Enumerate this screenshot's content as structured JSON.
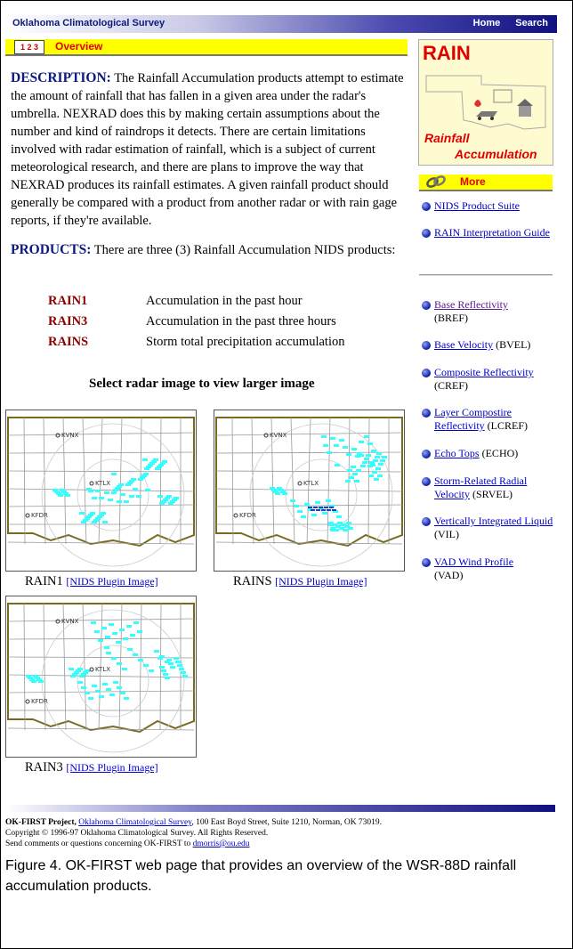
{
  "header": {
    "title": "Oklahoma Climatological Survey",
    "home": "Home",
    "search": "Search"
  },
  "overview": {
    "icon_text": "1 2 3",
    "label": "Overview"
  },
  "description": {
    "heading": "DESCRIPTION:",
    "body": "The Rainfall Accumulation products attempt to estimate the amount of rainfall that has fallen in a given area under the radar's umbrella. NEXRAD does this by making certain assumptions about the number and kind of raindrops it detects. There are certain limitations involved with radar estimation of rainfall, which is a subject of current meteorological research, and there are plans to improve the way that NEXRAD produces its rainfall estimates. A given rainfall product should generally be compared with a product from another radar or with rain gage reports, if they're available."
  },
  "products": {
    "heading": "PRODUCTS:",
    "body": "There are three (3) Rainfall Accumulation NIDS products:",
    "items": [
      {
        "code": "RAIN1",
        "desc": "Accumulation in the past hour"
      },
      {
        "code": "RAIN3",
        "desc": "Accumulation in the past three hours"
      },
      {
        "code": "RAINS",
        "desc": "Storm total precipitation accumulation"
      }
    ]
  },
  "select_text": "Select radar image to view larger image",
  "maps": [
    {
      "name": "RAIN1",
      "link": "[NIDS Plugin Image]",
      "labels": [
        "KVNX",
        "KTLX",
        "KFDR"
      ]
    },
    {
      "name": "RAINS",
      "link": "[NIDS Plugin Image]",
      "labels": [
        "KVNX",
        "KTLX",
        "KFDR"
      ]
    },
    {
      "name": "RAIN3",
      "link": "[NIDS Plugin Image]",
      "labels": [
        "KVNX",
        "KTLX",
        "KFDR"
      ]
    }
  ],
  "rain_box": {
    "title": "RAIN",
    "line1": "Rainfall",
    "line2": "Accumulation"
  },
  "more": {
    "label": "More"
  },
  "more_links": [
    "NIDS Product Suite",
    "RAIN Interpretation Guide"
  ],
  "product_links": [
    {
      "label": "Base Reflectivity",
      "abbr": "(BREF)"
    },
    {
      "label": "Base Velocity",
      "abbr": "(BVEL)"
    },
    {
      "label": "Composite Reflectivity",
      "abbr": "(CREF)"
    },
    {
      "label": "Layer Compostire Reflectivity",
      "abbr": "(LCREF)"
    },
    {
      "label": "Echo Tops",
      "abbr": "(ECHO)"
    },
    {
      "label": "Storm-Related Radial Velocity",
      "abbr": "(SRVEL)"
    },
    {
      "label": "Vertically Integrated Liquid",
      "abbr": "(VIL)"
    },
    {
      "label": "VAD Wind Profile",
      "abbr": "(VAD)"
    }
  ],
  "footer": {
    "project": "OK-FIRST Project,",
    "org_link": "Oklahoma Climatological Survey",
    "address": ", 100 East Boyd Street, Suite 1210, Norman, OK 73019.",
    "copyright": "Copyright © 1996-97 Oklahoma Climatological Survey. All Rights Reserved.",
    "contact_text": "Send comments or questions concerning OK-FIRST to",
    "email": "dmorris@ou.edu"
  },
  "figure_caption": "Figure 4.  OK-FIRST web page that provides an overview of the WSR-88D rainfall accumulation products.",
  "colors": {
    "accent_yellow": "#ffff00",
    "heading_navy": "#0b1a80",
    "product_red": "#8b0000",
    "link_blue": "#0000cc",
    "radar_cyan": "#33ffff"
  }
}
